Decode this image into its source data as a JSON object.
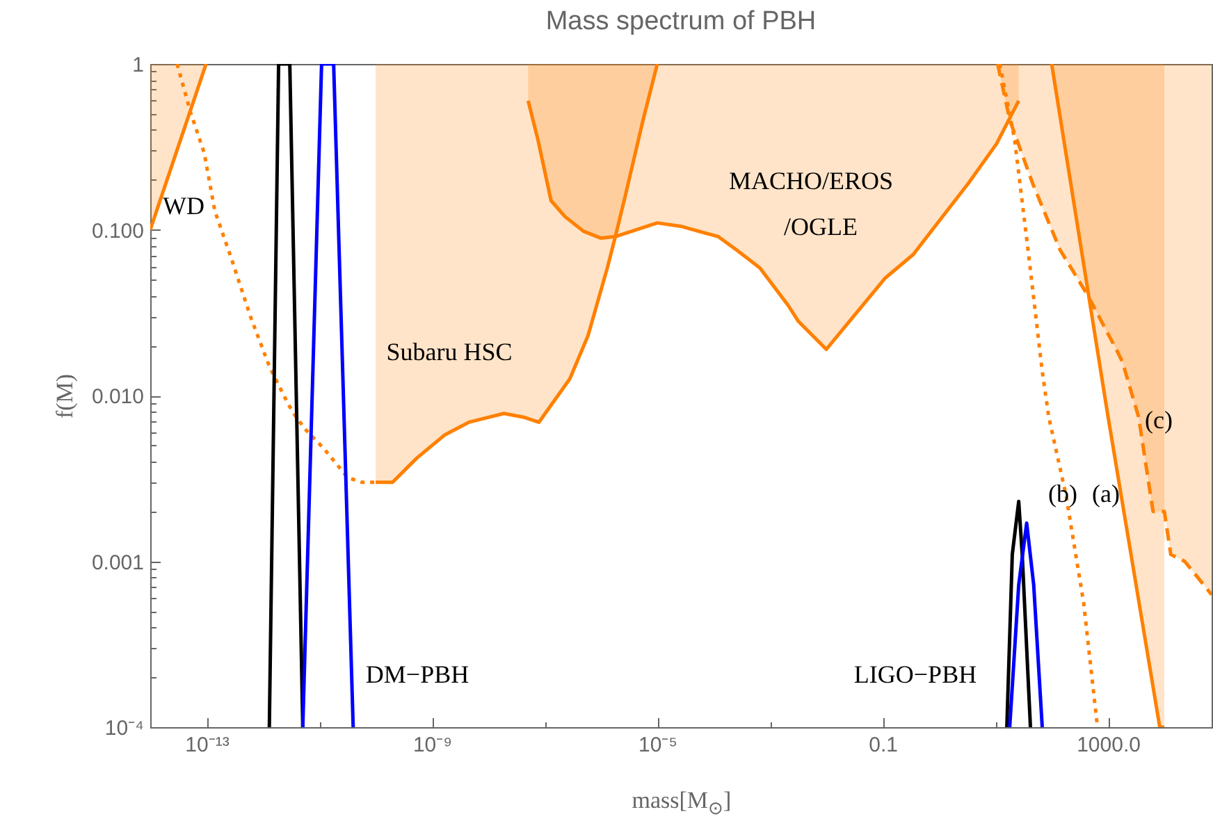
{
  "chart_data": {
    "type": "line",
    "title": "Mass spectrum of PBH",
    "xlabel": "mass[M$_{⊙}$]",
    "ylabel": "f(M)",
    "log": "xy",
    "xlim": [
      1e-14,
      69000
    ],
    "ylim": [
      0.0001,
      1
    ],
    "xticks": [
      {
        "value": 1e-13,
        "label": "10⁻¹³"
      },
      {
        "value": 1e-11,
        "label": null
      },
      {
        "value": 1e-09,
        "label": "10⁻⁹"
      },
      {
        "value": 1e-07,
        "label": null
      },
      {
        "value": 1e-05,
        "label": "10⁻⁵"
      },
      {
        "value": 0.001,
        "label": null
      },
      {
        "value": 0.1,
        "label": "0.1"
      },
      {
        "value": 10,
        "label": null
      },
      {
        "value": 1000,
        "label": "1000.0"
      }
    ],
    "yticks": [
      {
        "value": 0.0001,
        "label": "10⁻⁴"
      },
      {
        "value": 0.0002,
        "label": null
      },
      {
        "value": 0.0003,
        "label": null
      },
      {
        "value": 0.0004,
        "label": null
      },
      {
        "value": 0.0005,
        "label": null
      },
      {
        "value": 0.0006,
        "label": null
      },
      {
        "value": 0.0007,
        "label": null
      },
      {
        "value": 0.0008,
        "label": null
      },
      {
        "value": 0.0009,
        "label": null
      },
      {
        "value": 0.001,
        "label": "0.001"
      },
      {
        "value": 0.002,
        "label": null
      },
      {
        "value": 0.003,
        "label": null
      },
      {
        "value": 0.004,
        "label": null
      },
      {
        "value": 0.005,
        "label": null
      },
      {
        "value": 0.006,
        "label": null
      },
      {
        "value": 0.007,
        "label": null
      },
      {
        "value": 0.008,
        "label": null
      },
      {
        "value": 0.009,
        "label": null
      },
      {
        "value": 0.01,
        "label": "0.010"
      },
      {
        "value": 0.02,
        "label": null
      },
      {
        "value": 0.03,
        "label": null
      },
      {
        "value": 0.04,
        "label": null
      },
      {
        "value": 0.05,
        "label": null
      },
      {
        "value": 0.06,
        "label": null
      },
      {
        "value": 0.07,
        "label": null
      },
      {
        "value": 0.08,
        "label": null
      },
      {
        "value": 0.09,
        "label": null
      },
      {
        "value": 0.1,
        "label": "0.100"
      },
      {
        "value": 0.2,
        "label": null
      },
      {
        "value": 0.3,
        "label": null
      },
      {
        "value": 0.4,
        "label": null
      },
      {
        "value": 0.5,
        "label": null
      },
      {
        "value": 0.6,
        "label": null
      },
      {
        "value": 0.7,
        "label": null
      },
      {
        "value": 0.8,
        "label": null
      },
      {
        "value": 0.9,
        "label": null
      },
      {
        "value": 1,
        "label": "1"
      }
    ],
    "series": [
      {
        "color": "#ff8000",
        "line_style": "solid",
        "x": [
          1e-14,
          9.8e-14
        ],
        "values": [
          0.1,
          1
        ],
        "lower": [
          0.1,
          1
        ],
        "upper": [
          1,
          1
        ]
      },
      {
        "color": "#ff8000",
        "line_style": "dotted",
        "x": [
          3e-14,
          5.2e-14,
          9.1e-14,
          1.4e-13,
          2.8e-13,
          6e-13,
          1.3e-12,
          2.8e-12,
          3.9e-12,
          5.8e-12,
          1.2e-11,
          3.2e-11,
          5.6e-11,
          1e-10
        ],
        "values": [
          1,
          0.51,
          0.29,
          0.13,
          0.066,
          0.03,
          0.015,
          0.0089,
          0.0074,
          0.0062,
          0.0048,
          0.0032,
          0.003,
          0.003
        ]
      },
      {
        "color": "#ff8000",
        "line_style": "solid",
        "x": [
          1e-10,
          2e-10,
          5.4e-10,
          1.7e-09,
          4.5e-09,
          1.9e-08,
          4.3e-08,
          7.9e-08,
          2.8e-07,
          5.9e-07,
          1.3e-06,
          1.8e-06,
          2.7e-06,
          5.6e-06,
          1e-05
        ],
        "values": [
          0.003,
          0.003,
          0.0042,
          0.0058,
          0.0069,
          0.0078,
          0.0074,
          0.0069,
          0.0126,
          0.023,
          0.059,
          0.091,
          0.16,
          0.46,
          1
        ],
        "lower": [
          0.003,
          0.003,
          0.0042,
          0.0058,
          0.0069,
          0.0078,
          0.0074,
          0.0069,
          0.0126,
          0.023,
          0.059,
          0.091,
          0.16,
          0.46,
          1
        ],
        "upper": [
          1,
          1,
          1,
          1,
          1,
          1,
          1,
          1,
          1,
          1,
          1,
          1,
          1,
          1,
          1
        ]
      },
      {
        "color": "#ff8000",
        "line_style": "solid",
        "x": [
          5.1e-08,
          7.6e-08,
          1.3e-07,
          2.3e-07,
          4.9e-07,
          1e-06,
          1.8e-06,
          1e-05,
          2.6e-05,
          0.00012,
          0.00025,
          0.00066,
          0.0021,
          0.0032,
          0.01,
          0.028,
          0.11,
          0.35,
          0.85,
          3.3,
          10.5,
          26
        ],
        "values": [
          0.6,
          0.35,
          0.15,
          0.12,
          0.098,
          0.089,
          0.091,
          0.11,
          0.105,
          0.091,
          0.076,
          0.059,
          0.035,
          0.028,
          0.019,
          0.029,
          0.051,
          0.071,
          0.105,
          0.19,
          0.33,
          0.6
        ],
        "lower": [
          0.6,
          0.35,
          0.15,
          0.12,
          0.098,
          0.089,
          0.091,
          0.11,
          0.105,
          0.091,
          0.076,
          0.059,
          0.035,
          0.028,
          0.019,
          0.029,
          0.051,
          0.071,
          0.105,
          0.19,
          0.33,
          0.6
        ],
        "upper": [
          1,
          1,
          1,
          1,
          1,
          1,
          1,
          1,
          1,
          1,
          1,
          1,
          1,
          1,
          1,
          1,
          1,
          1,
          1,
          1,
          1,
          1
        ]
      },
      {
        "color": "#ff8000",
        "line_style": "dotted",
        "x": [
          12,
          22,
          38,
          68,
          89,
          180,
          370,
          650
        ],
        "values": [
          1,
          0.35,
          0.076,
          0.014,
          0.0074,
          0.0025,
          0.00056,
          0.0001
        ]
      },
      {
        "color": "#ff8000",
        "line_style": "solid",
        "x": [
          100,
          980,
          8300,
          10000
        ],
        "values": [
          1,
          0.0078,
          0.0001,
          0.0001
        ],
        "lower": [
          1,
          0.0078,
          0.0001,
          0.0001
        ],
        "upper": [
          1,
          1,
          1,
          1
        ]
      },
      {
        "color": "#ff8000",
        "line_style": "dashed",
        "x": [
          11,
          18,
          46,
          140,
          440,
          1400,
          1800,
          3500,
          6300,
          10000,
          13000,
          23000,
          69000
        ],
        "values": [
          1,
          0.46,
          0.19,
          0.076,
          0.04,
          0.019,
          0.016,
          0.0074,
          0.002,
          0.002,
          0.0011,
          0.001,
          0.00063
        ],
        "lower": [
          1,
          0.46,
          0.19,
          0.076,
          0.04,
          0.019,
          0.016,
          0.0074,
          0.002,
          0.002,
          0.0011,
          0.001,
          0.00063
        ],
        "upper": [
          1,
          1,
          1,
          1,
          1,
          1,
          1,
          1,
          1,
          1,
          1,
          1,
          1
        ]
      },
      {
        "color": "#000000",
        "line_style": "solid",
        "x": [
          1.3e-12,
          1.9e-12,
          3e-12,
          5.1e-12
        ],
        "values": [
          0.0001,
          1,
          1,
          0.0001
        ]
      },
      {
        "color": "#0000ff",
        "line_style": "solid",
        "x": [
          5.1e-12,
          1.1e-11,
          1.8e-11,
          4e-11
        ],
        "values": [
          0.0001,
          1,
          1,
          0.0001
        ]
      },
      {
        "color": "#000000",
        "line_style": "solid",
        "x": [
          16,
          20,
          26,
          30,
          42
        ],
        "values": [
          0.0001,
          0.0011,
          0.0023,
          0.0011,
          0.0001
        ]
      },
      {
        "color": "#0000ff",
        "line_style": "solid",
        "x": [
          18,
          26,
          36,
          48,
          68
        ],
        "values": [
          0.0001,
          0.00072,
          0.0017,
          0.00072,
          0.0001
        ]
      }
    ],
    "annotations": [
      "WD",
      "Subaru HSC",
      "MACHO/EROS",
      "/OGLE",
      "DM−PBH",
      "LIGO−PBH",
      "(b)",
      "(a)",
      "(c)"
    ]
  }
}
